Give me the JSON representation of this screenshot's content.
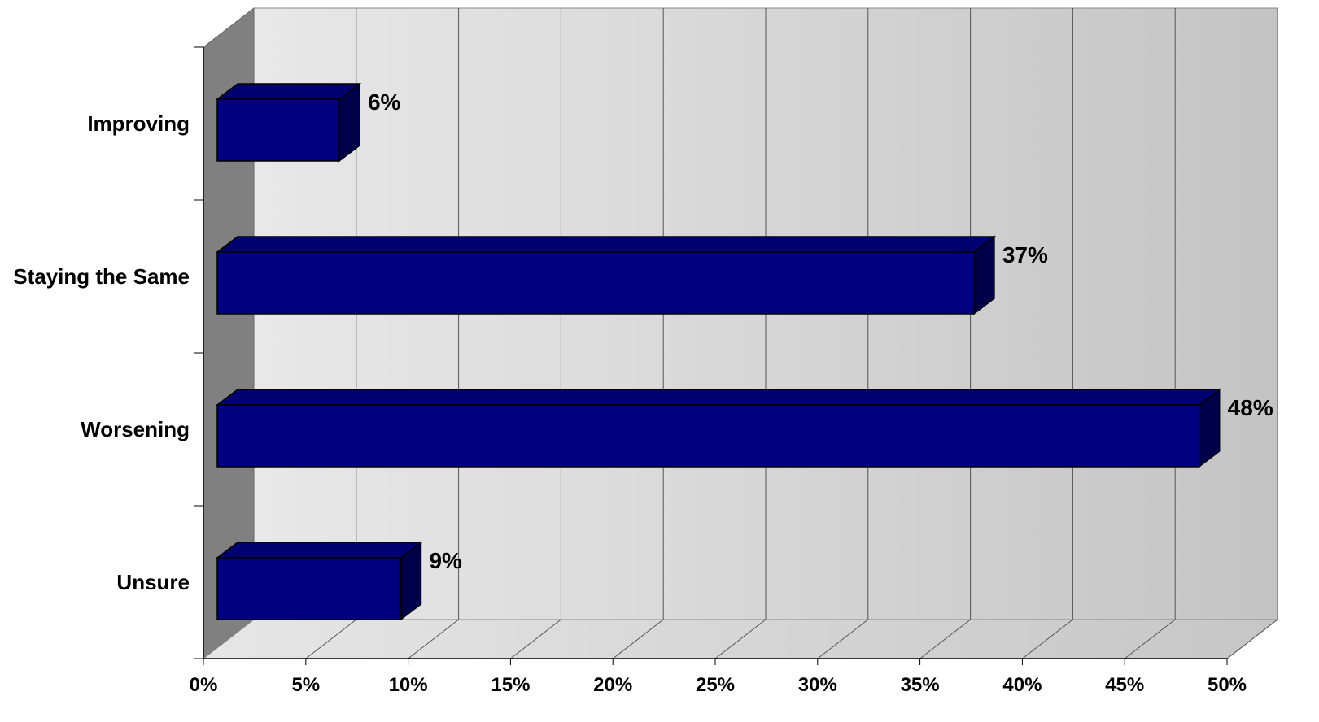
{
  "chart_data": {
    "type": "bar",
    "orientation": "horizontal",
    "style": "3d",
    "categories": [
      "Improving",
      "Staying the Same",
      "Worsening",
      "Unsure"
    ],
    "values": [
      6,
      37,
      48,
      9
    ],
    "value_labels": [
      "6%",
      "37%",
      "48%",
      "9%"
    ],
    "xlim": [
      0,
      50
    ],
    "x_ticks": [
      0,
      5,
      10,
      15,
      20,
      25,
      30,
      35,
      40,
      45,
      50
    ],
    "x_tick_labels": [
      "0%",
      "5%",
      "10%",
      "15%",
      "20%",
      "25%",
      "30%",
      "35%",
      "40%",
      "45%",
      "50%"
    ],
    "grid": true,
    "legend": false,
    "title": "",
    "xlabel": "",
    "ylabel": "",
    "colors": {
      "bar_front": "#000080",
      "bar_top": "#000070",
      "bar_side": "#00004a",
      "wall_left": "#bdbdbd",
      "wall_right": "#c4c4c4",
      "side_wall": "#808080",
      "floor": "#c8c8c8",
      "gridline": "#555555"
    }
  }
}
